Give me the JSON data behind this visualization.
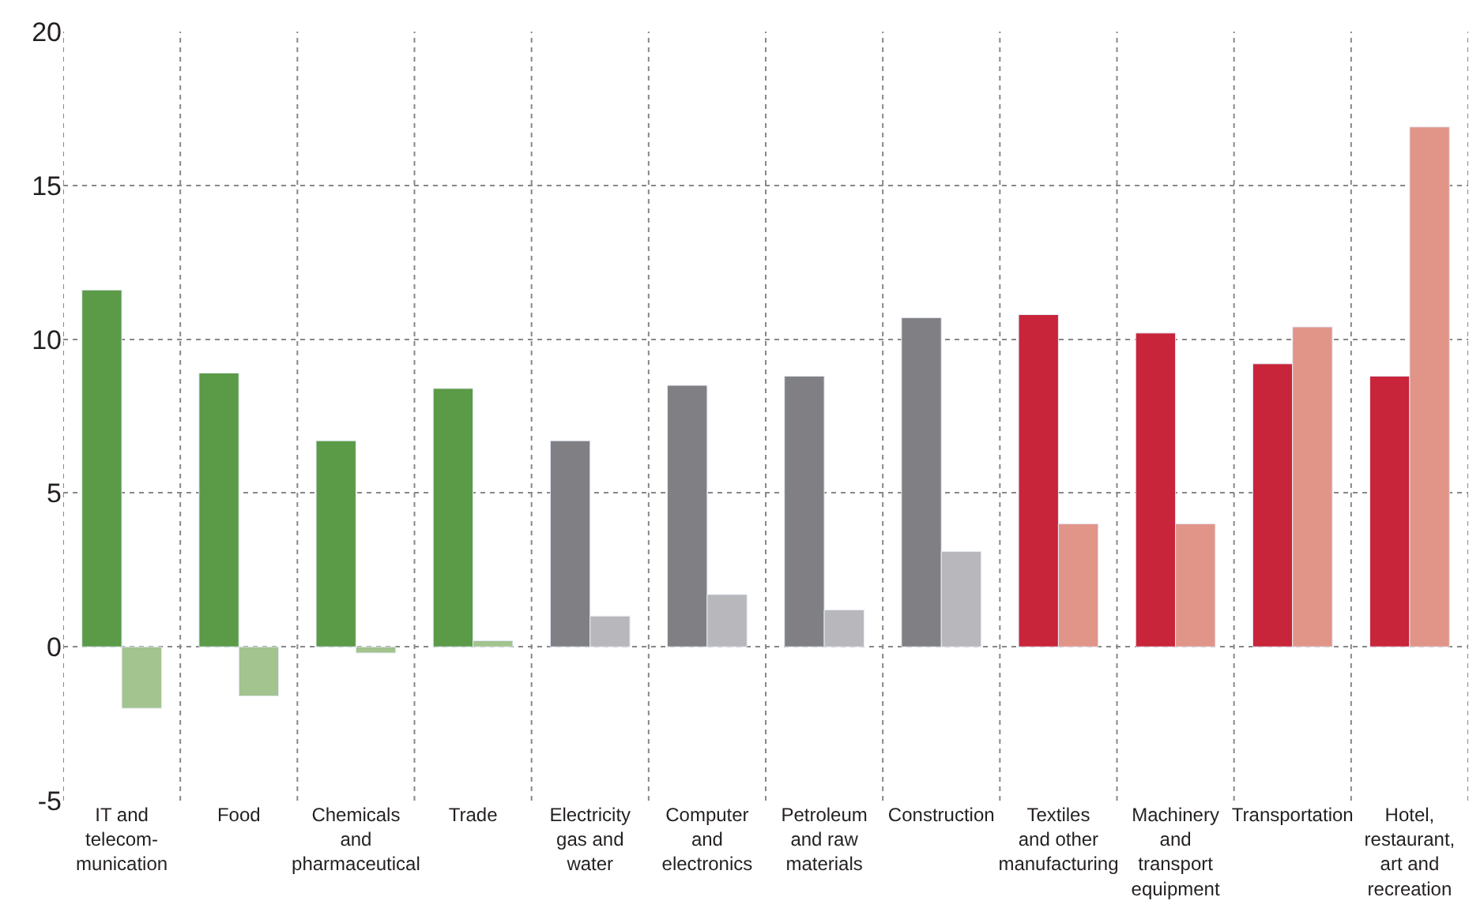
{
  "chart_data": {
    "type": "bar",
    "categories": [
      "IT and\ntelecom-\nmunication",
      "Food",
      "Chemicals\nand\npharmaceutical",
      "Trade",
      "Electricity\ngas and\nwater",
      "Computer\nand\nelectronics",
      "Petroleum\nand raw\nmaterials",
      "Construction",
      "Textiles\nand other\nmanufacturing",
      "Machinery\nand\ntransport\nequipment",
      "Transportation",
      "Hotel,\nrestaurant,\nart and\nrecreation"
    ],
    "series": [
      {
        "values": [
          11.6,
          8.9,
          6.7,
          8.4,
          6.7,
          8.5,
          8.8,
          10.7,
          10.8,
          10.2,
          9.2,
          8.8
        ],
        "colors": [
          "#5b9a47",
          "#5b9a47",
          "#5b9a47",
          "#5b9a47",
          "#808084",
          "#808084",
          "#808084",
          "#808084",
          "#c8243a",
          "#c8243a",
          "#c8243a",
          "#c8243a"
        ]
      },
      {
        "values": [
          -2.0,
          -1.6,
          -0.2,
          0.2,
          1.0,
          1.7,
          1.2,
          3.1,
          4.0,
          4.0,
          10.4,
          16.9
        ],
        "colors": [
          "#a3c38f",
          "#a3c38f",
          "#a3c38f",
          "#a3c38f",
          "#b8b8bc",
          "#b8b8bc",
          "#b8b8bc",
          "#b8b8bc",
          "#e19488",
          "#e19488",
          "#e19488",
          "#e19488"
        ]
      }
    ],
    "ylim": [
      -5,
      20
    ],
    "yticks": [
      -5,
      0,
      5,
      10,
      15,
      20
    ],
    "grid": true
  }
}
